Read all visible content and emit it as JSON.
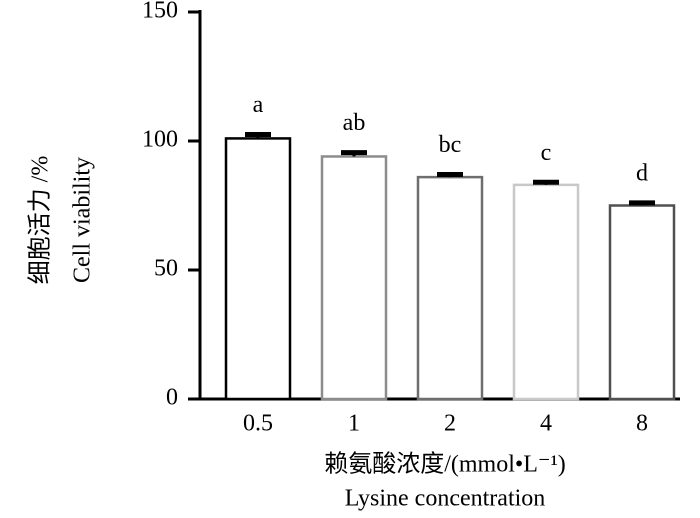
{
  "chart_data": {
    "type": "bar",
    "y_label": [
      "细胞活力 /%",
      "Cell viability"
    ],
    "x_label": [
      "赖氨酸浓度/(mmol•L⁻¹)",
      "Lysine concentration"
    ],
    "categories": [
      "0.5",
      "1",
      "2",
      "4",
      "8"
    ],
    "values": [
      101,
      94,
      86,
      83,
      75
    ],
    "errors": [
      1.5,
      1.5,
      1,
      1,
      1
    ],
    "letters": [
      "a",
      "ab",
      "bc",
      "c",
      "d"
    ],
    "colors": [
      "#000000",
      "#8c8c8c",
      "#6e6e6e",
      "#c8c8c8",
      "#505050"
    ],
    "ylim": [
      0,
      150
    ],
    "yticks": [
      0,
      50,
      100,
      150
    ],
    "grid": false
  }
}
